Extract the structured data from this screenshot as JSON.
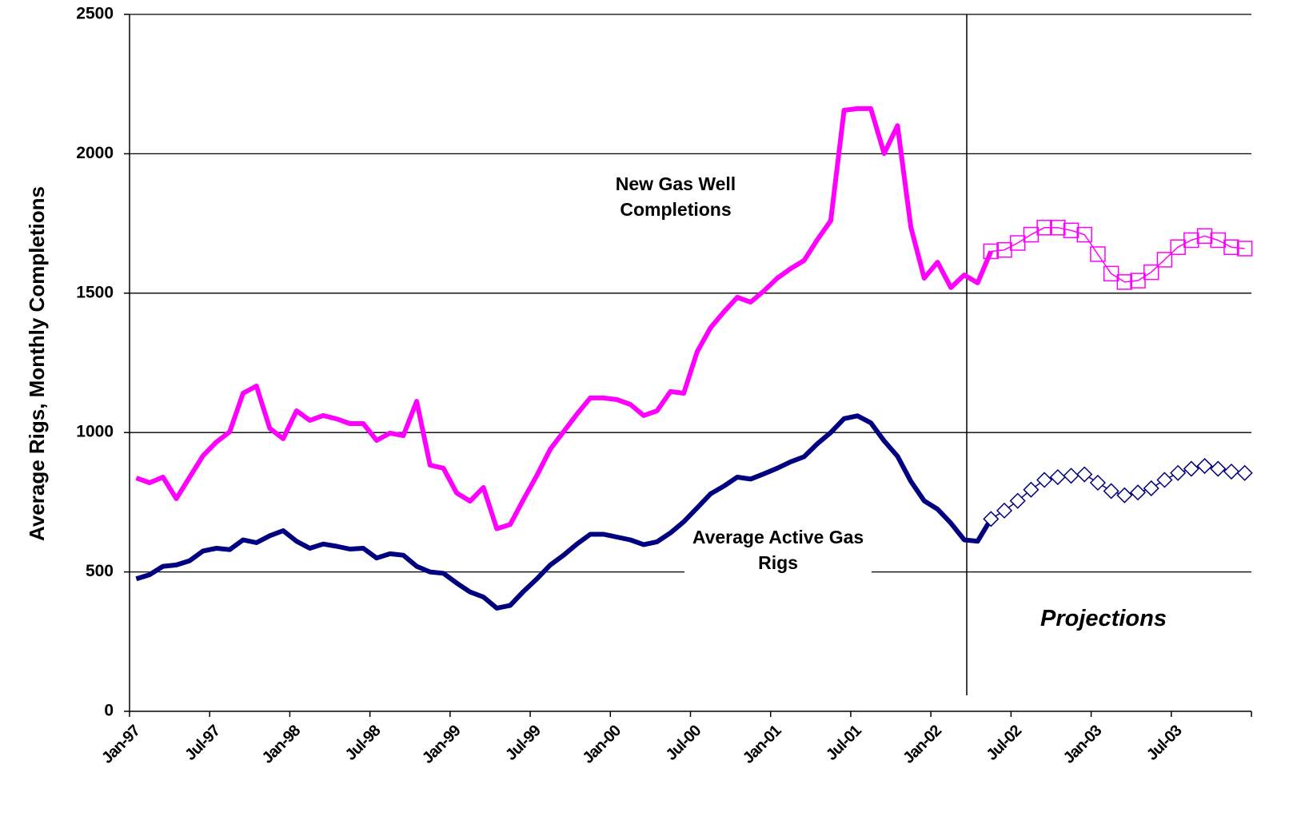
{
  "chart_data": {
    "type": "line",
    "y_label": "Average Rigs, Monthly Completions",
    "annotations": [
      "New Gas Well Completions",
      "Average Active Gas Rigs",
      "Projections"
    ],
    "categories": [
      "Jan-97",
      null,
      null,
      null,
      null,
      null,
      "Jul-97",
      null,
      null,
      null,
      null,
      null,
      "Jan-98",
      null,
      null,
      null,
      null,
      null,
      "Jul-98",
      null,
      null,
      null,
      null,
      null,
      "Jan-99",
      null,
      null,
      null,
      null,
      null,
      "Jul-99",
      null,
      null,
      null,
      null,
      null,
      "Jan-00",
      null,
      null,
      null,
      null,
      null,
      "Jul-00",
      null,
      null,
      null,
      null,
      null,
      "Jan-01",
      null,
      null,
      null,
      null,
      null,
      "Jul-01",
      null,
      null,
      null,
      null,
      null,
      "Jan-02",
      null,
      null,
      null,
      null,
      null,
      "Jul-02",
      null,
      null,
      null,
      null,
      null,
      "Jan-03",
      null,
      null,
      null,
      null,
      null,
      "Jul-03",
      null,
      null,
      null,
      null,
      null
    ],
    "ylim": [
      0,
      2500
    ],
    "yticks": [
      0,
      500,
      1000,
      1500,
      2000,
      2500
    ],
    "grid": true,
    "series": [
      {
        "name": "New Gas Well Completions",
        "color": "#ff00ff",
        "marker": "none",
        "values": [
          837,
          820,
          840,
          763,
          840,
          917,
          966,
          1003,
          1141,
          1167,
          1015,
          978,
          1078,
          1044,
          1061,
          1049,
          1032,
          1032,
          972,
          998,
          989,
          1112,
          883,
          872,
          783,
          754,
          803,
          655,
          670,
          760,
          846,
          940,
          1003,
          1066,
          1124,
          1124,
          1118,
          1101,
          1061,
          1078,
          1147,
          1141,
          1290,
          1376,
          1433,
          1485,
          1468,
          1508,
          1554,
          1588,
          1617,
          1692,
          1760,
          2156,
          2162,
          2162,
          2001,
          2101,
          1737,
          1554,
          1611,
          1520,
          1565,
          1537,
          1650,
          null,
          null,
          null,
          null,
          null,
          null,
          null,
          null,
          null,
          null,
          null,
          null,
          null,
          null,
          null,
          null,
          null,
          null,
          null
        ]
      },
      {
        "color": "#ff00ff",
        "marker": "square",
        "values": [
          null,
          null,
          null,
          null,
          null,
          null,
          null,
          null,
          null,
          null,
          null,
          null,
          null,
          null,
          null,
          null,
          null,
          null,
          null,
          null,
          null,
          null,
          null,
          null,
          null,
          null,
          null,
          null,
          null,
          null,
          null,
          null,
          null,
          null,
          null,
          null,
          null,
          null,
          null,
          null,
          null,
          null,
          null,
          null,
          null,
          null,
          null,
          null,
          null,
          null,
          null,
          null,
          null,
          null,
          null,
          null,
          null,
          null,
          null,
          null,
          null,
          null,
          null,
          null,
          1650,
          1655,
          1680,
          1710,
          1735,
          1735,
          1725,
          1710,
          1640,
          1570,
          1540,
          1545,
          1575,
          1620,
          1665,
          1690,
          1705,
          1690,
          1665,
          1660
        ]
      },
      {
        "name": "Average Active Gas Rigs",
        "color": "#000080",
        "marker": "none",
        "values": [
          475,
          490,
          520,
          525,
          540,
          575,
          585,
          580,
          615,
          605,
          630,
          648,
          610,
          585,
          600,
          592,
          582,
          585,
          550,
          565,
          560,
          520,
          500,
          495,
          460,
          428,
          410,
          370,
          380,
          430,
          475,
          525,
          560,
          600,
          635,
          635,
          625,
          615,
          598,
          608,
          640,
          680,
          730,
          780,
          808,
          840,
          833,
          852,
          872,
          895,
          913,
          960,
          1000,
          1050,
          1060,
          1035,
          970,
          915,
          825,
          755,
          725,
          675,
          615,
          610,
          690,
          null,
          null,
          null,
          null,
          null,
          null,
          null,
          null,
          null,
          null,
          null,
          null,
          null,
          null,
          null,
          null,
          null,
          null,
          null
        ]
      },
      {
        "color": "#000080",
        "marker": "diamond",
        "values": [
          null,
          null,
          null,
          null,
          null,
          null,
          null,
          null,
          null,
          null,
          null,
          null,
          null,
          null,
          null,
          null,
          null,
          null,
          null,
          null,
          null,
          null,
          null,
          null,
          null,
          null,
          null,
          null,
          null,
          null,
          null,
          null,
          null,
          null,
          null,
          null,
          null,
          null,
          null,
          null,
          null,
          null,
          null,
          null,
          null,
          null,
          null,
          null,
          null,
          null,
          null,
          null,
          null,
          null,
          null,
          null,
          null,
          null,
          null,
          null,
          null,
          null,
          null,
          null,
          690,
          720,
          755,
          795,
          830,
          840,
          845,
          850,
          820,
          790,
          775,
          785,
          800,
          830,
          855,
          870,
          880,
          870,
          860,
          855
        ]
      }
    ]
  }
}
